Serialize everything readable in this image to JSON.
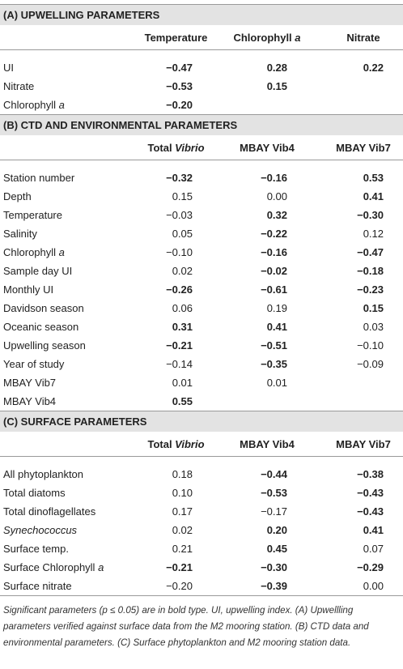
{
  "sections": [
    {
      "title": "(A) UPWELLING PARAMETERS",
      "columns": [
        {
          "text": "Temperature"
        },
        {
          "text": "Chlorophyll ",
          "italic": "a"
        },
        {
          "text": "Nitrate"
        }
      ],
      "rows": [
        {
          "label": {
            "text": "UI"
          },
          "cells": [
            {
              "value": "−0.47",
              "bold": true
            },
            {
              "value": "0.28",
              "bold": true
            },
            {
              "value": "0.22",
              "bold": true
            }
          ]
        },
        {
          "label": {
            "text": "Nitrate"
          },
          "cells": [
            {
              "value": "−0.53",
              "bold": true
            },
            {
              "value": "0.15",
              "bold": true
            },
            null
          ]
        },
        {
          "label": {
            "text": "Chlorophyll ",
            "italic": "a"
          },
          "cells": [
            {
              "value": "−0.20",
              "bold": true
            },
            null,
            null
          ]
        }
      ]
    },
    {
      "title": "(B) CTD AND ENVIRONMENTAL PARAMETERS",
      "columns": [
        {
          "text": "Total ",
          "italic": "Vibrio"
        },
        {
          "text": "MBAY Vib4"
        },
        {
          "text": "MBAY Vib7"
        }
      ],
      "rows": [
        {
          "label": {
            "text": "Station number"
          },
          "cells": [
            {
              "value": "−0.32",
              "bold": true
            },
            {
              "value": "−0.16",
              "bold": true
            },
            {
              "value": "0.53",
              "bold": true
            }
          ]
        },
        {
          "label": {
            "text": "Depth"
          },
          "cells": [
            {
              "value": "0.15",
              "bold": false
            },
            {
              "value": "0.00",
              "bold": false
            },
            {
              "value": "0.41",
              "bold": true
            }
          ]
        },
        {
          "label": {
            "text": "Temperature"
          },
          "cells": [
            {
              "value": "−0.03",
              "bold": false
            },
            {
              "value": "0.32",
              "bold": true
            },
            {
              "value": "−0.30",
              "bold": true
            }
          ]
        },
        {
          "label": {
            "text": "Salinity"
          },
          "cells": [
            {
              "value": "0.05",
              "bold": false
            },
            {
              "value": "−0.22",
              "bold": true
            },
            {
              "value": "0.12",
              "bold": false
            }
          ]
        },
        {
          "label": {
            "text": "Chlorophyll ",
            "italic": "a"
          },
          "cells": [
            {
              "value": "−0.10",
              "bold": false
            },
            {
              "value": "−0.16",
              "bold": true
            },
            {
              "value": "−0.47",
              "bold": true
            }
          ]
        },
        {
          "label": {
            "text": "Sample day UI"
          },
          "cells": [
            {
              "value": "0.02",
              "bold": false
            },
            {
              "value": "−0.02",
              "bold": true
            },
            {
              "value": "−0.18",
              "bold": true
            }
          ]
        },
        {
          "label": {
            "text": "Monthly UI"
          },
          "cells": [
            {
              "value": "−0.26",
              "bold": true
            },
            {
              "value": "−0.61",
              "bold": true
            },
            {
              "value": "−0.23",
              "bold": true
            }
          ]
        },
        {
          "label": {
            "text": "Davidson season"
          },
          "cells": [
            {
              "value": "0.06",
              "bold": false
            },
            {
              "value": "0.19",
              "bold": false
            },
            {
              "value": "0.15",
              "bold": true
            }
          ]
        },
        {
          "label": {
            "text": "Oceanic season"
          },
          "cells": [
            {
              "value": "0.31",
              "bold": true
            },
            {
              "value": "0.41",
              "bold": true
            },
            {
              "value": "0.03",
              "bold": false
            }
          ]
        },
        {
          "label": {
            "text": "Upwelling season"
          },
          "cells": [
            {
              "value": "−0.21",
              "bold": true
            },
            {
              "value": "−0.51",
              "bold": true
            },
            {
              "value": "−0.10",
              "bold": false
            }
          ]
        },
        {
          "label": {
            "text": "Year of study"
          },
          "cells": [
            {
              "value": "−0.14",
              "bold": false
            },
            {
              "value": "−0.35",
              "bold": true
            },
            {
              "value": "−0.09",
              "bold": false
            }
          ]
        },
        {
          "label": {
            "text": "MBAY Vib7"
          },
          "cells": [
            {
              "value": "0.01",
              "bold": false
            },
            {
              "value": "0.01",
              "bold": false
            },
            null
          ]
        },
        {
          "label": {
            "text": "MBAY Vib4"
          },
          "cells": [
            {
              "value": "0.55",
              "bold": true
            },
            null,
            null
          ]
        }
      ]
    },
    {
      "title": "(C) SURFACE PARAMETERS",
      "columns": [
        {
          "text": "Total ",
          "italic": "Vibrio"
        },
        {
          "text": "MBAY Vib4"
        },
        {
          "text": "MBAY Vib7"
        }
      ],
      "rows": [
        {
          "label": {
            "text": "All phytoplankton"
          },
          "cells": [
            {
              "value": "0.18",
              "bold": false
            },
            {
              "value": "−0.44",
              "bold": true
            },
            {
              "value": "−0.38",
              "bold": true
            }
          ]
        },
        {
          "label": {
            "text": "Total diatoms"
          },
          "cells": [
            {
              "value": "0.10",
              "bold": false
            },
            {
              "value": "−0.53",
              "bold": true
            },
            {
              "value": "−0.43",
              "bold": true
            }
          ]
        },
        {
          "label": {
            "text": "Total dinoflagellates"
          },
          "cells": [
            {
              "value": "0.17",
              "bold": false
            },
            {
              "value": "−0.17",
              "bold": false
            },
            {
              "value": "−0.43",
              "bold": true
            }
          ]
        },
        {
          "label": {
            "italic": "Synechococcus"
          },
          "cells": [
            {
              "value": "0.02",
              "bold": false
            },
            {
              "value": "0.20",
              "bold": true
            },
            {
              "value": "0.41",
              "bold": true
            }
          ]
        },
        {
          "label": {
            "text": "Surface temp."
          },
          "cells": [
            {
              "value": "0.21",
              "bold": false
            },
            {
              "value": "0.45",
              "bold": true
            },
            {
              "value": "0.07",
              "bold": false
            }
          ]
        },
        {
          "label": {
            "text": "Surface Chlorophyll ",
            "italic": "a"
          },
          "cells": [
            {
              "value": "−0.21",
              "bold": true
            },
            {
              "value": "−0.30",
              "bold": true
            },
            {
              "value": "−0.29",
              "bold": true
            }
          ]
        },
        {
          "label": {
            "text": "Surface nitrate"
          },
          "cells": [
            {
              "value": "−0.20",
              "bold": false
            },
            {
              "value": "−0.39",
              "bold": true
            },
            {
              "value": "0.00",
              "bold": false
            }
          ]
        }
      ]
    }
  ],
  "caption": "Significant parameters (p ≤ 0.05) are in bold type. UI, upwelling index. (A) Upwellling parameters verified against surface data from the M2 mooring station. (B) CTD data and environmental parameters. (C) Surface phytoplankton and M2 mooring station data."
}
